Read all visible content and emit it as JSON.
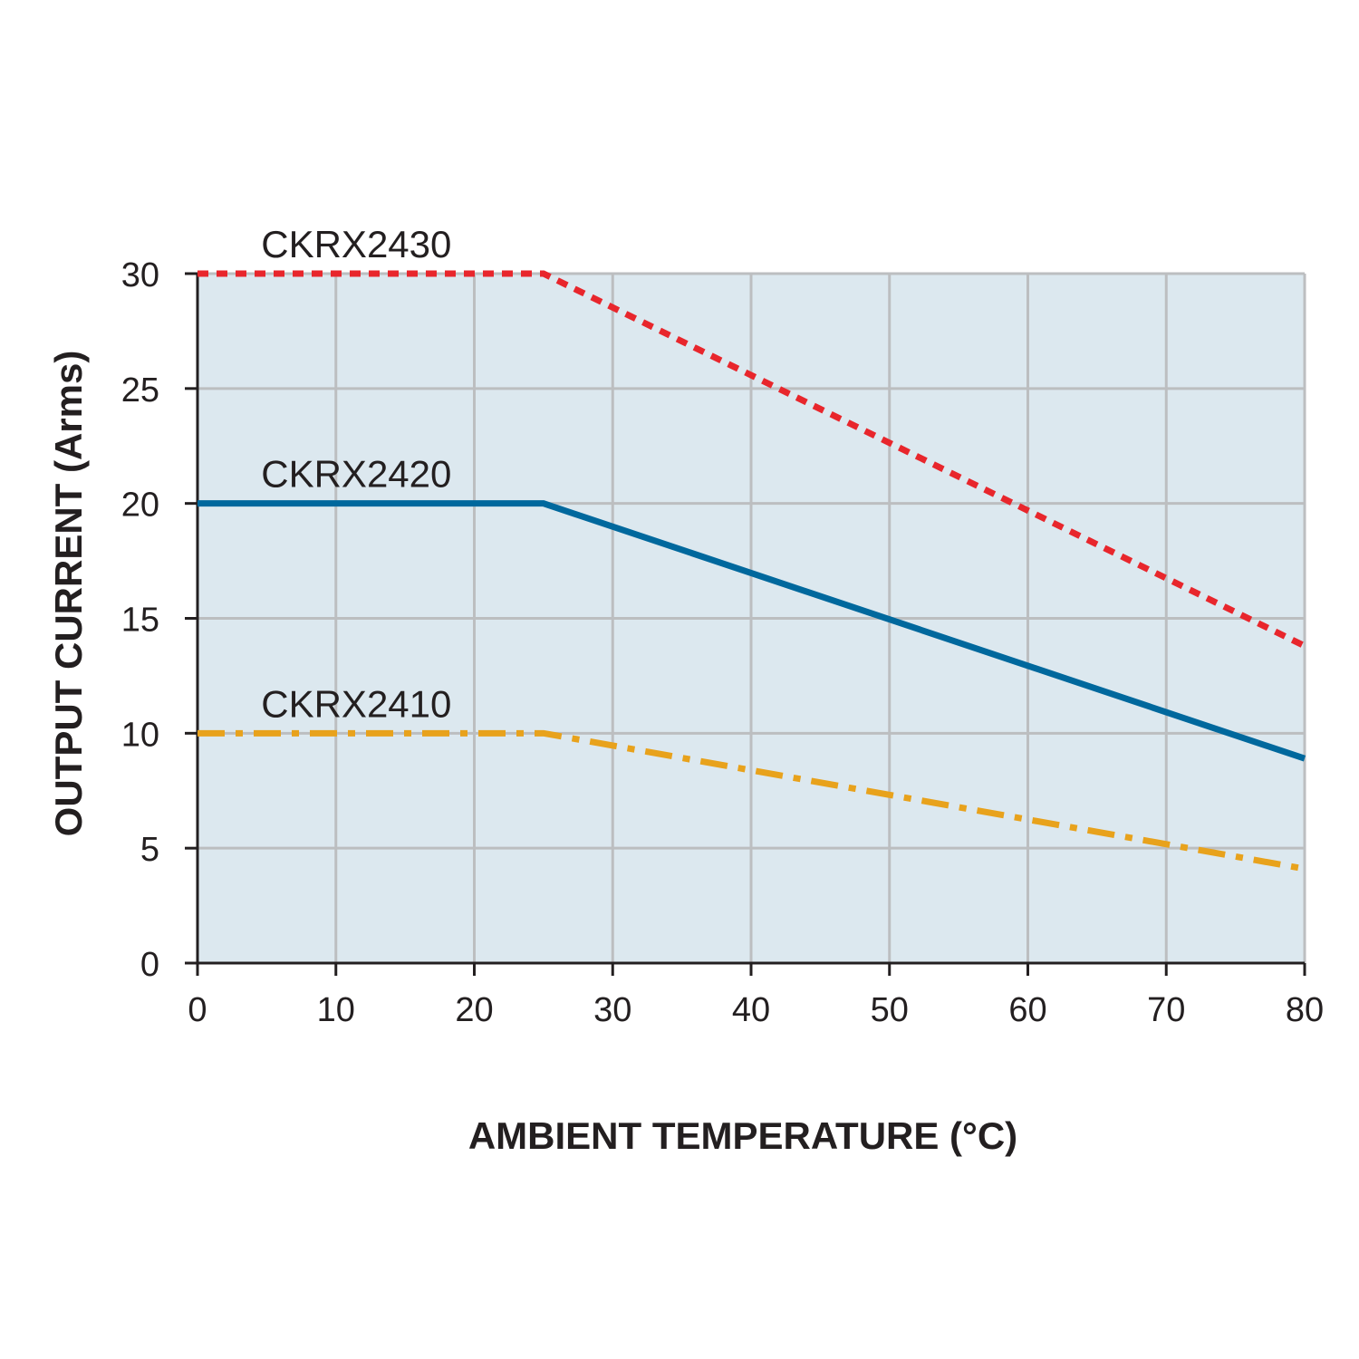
{
  "chart_data": {
    "type": "line",
    "xlabel": "AMBIENT TEMPERATURE (°C)",
    "ylabel": "OUTPUT CURRENT (Arms)",
    "xlim": [
      0,
      80
    ],
    "ylim": [
      0,
      30
    ],
    "x_ticks": [
      0,
      10,
      20,
      30,
      40,
      50,
      60,
      70,
      80
    ],
    "y_ticks": [
      0,
      5,
      10,
      15,
      20,
      25,
      30
    ],
    "grid": true,
    "plot_background": "#dce8ef",
    "grid_color": "#bcbec0",
    "series": [
      {
        "name": "CKRX2430",
        "color": "#e8262c",
        "style": "dotted",
        "x": [
          0,
          25,
          80
        ],
        "y": [
          30,
          30,
          13.8
        ]
      },
      {
        "name": "CKRX2420",
        "color": "#00689d",
        "style": "solid",
        "x": [
          0,
          25,
          80
        ],
        "y": [
          20,
          20,
          8.9
        ]
      },
      {
        "name": "CKRX2410",
        "color": "#e8a21c",
        "style": "dash-dot",
        "x": [
          0,
          25,
          80
        ],
        "y": [
          10,
          10,
          4.1
        ]
      }
    ]
  }
}
